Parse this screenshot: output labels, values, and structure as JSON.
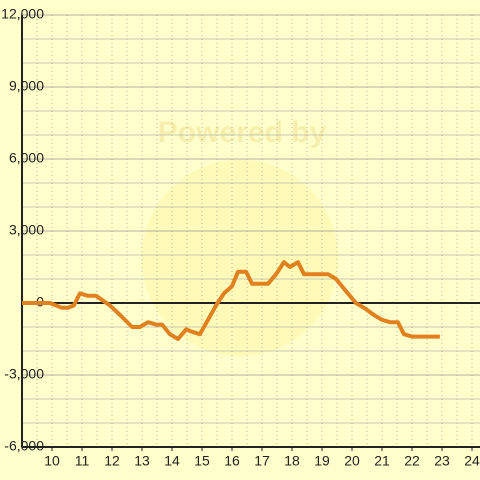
{
  "chart_data": {
    "type": "line",
    "watermark": "Powered by",
    "x": [
      9.0,
      9.93,
      10.33,
      10.53,
      10.73,
      10.93,
      11.2,
      11.47,
      11.93,
      12.27,
      12.67,
      12.93,
      13.2,
      13.47,
      13.67,
      13.93,
      14.2,
      14.47,
      14.67,
      14.93,
      15.2,
      15.47,
      15.73,
      16.0,
      16.2,
      16.47,
      16.67,
      16.93,
      17.2,
      17.47,
      17.73,
      17.93,
      18.2,
      18.4,
      18.93,
      19.2,
      19.47,
      19.73,
      19.93,
      20.13,
      20.4,
      20.73,
      21.0,
      21.27,
      21.53,
      21.73,
      22.0,
      22.93
    ],
    "series": [
      {
        "color": "#e0801f",
        "values": [
          0,
          0,
          -200,
          -200,
          -100,
          400,
          300,
          300,
          -100,
          -500,
          -1000,
          -1000,
          -800,
          -900,
          -900,
          -1300,
          -1500,
          -1100,
          -1200,
          -1300,
          -700,
          -100,
          400,
          700,
          1300,
          1300,
          800,
          800,
          800,
          1200,
          1700,
          1500,
          1700,
          1200,
          1200,
          1200,
          1000,
          600,
          300,
          0,
          -200,
          -500,
          -700,
          -800,
          -800,
          -1300,
          -1400,
          -1400
        ]
      }
    ],
    "xlim": [
      9,
      24.3
    ],
    "xticks": [
      10,
      11,
      12,
      13,
      14,
      15,
      16,
      17,
      18,
      19,
      20,
      21,
      22,
      23,
      24
    ],
    "xminorticks": [
      9.5,
      10,
      10.5,
      11,
      11.5,
      12,
      12.5,
      13,
      13.5,
      14,
      14.5,
      15,
      15.5,
      16,
      16.5,
      17,
      17.5,
      18,
      18.5,
      19,
      19.5,
      20,
      20.5,
      21,
      21.5,
      22,
      22.5,
      23,
      23.5,
      24
    ],
    "ylim": [
      -6000,
      12000
    ],
    "yticks": [
      {
        "value": -6000,
        "label": "-6,000"
      },
      {
        "value": -3000,
        "label": "-3,000"
      },
      0,
      {
        "value": 3000,
        "label": "3,000"
      },
      {
        "value": 6000,
        "label": "6,000"
      },
      {
        "value": 9000,
        "label": "9,000"
      },
      {
        "value": 12000,
        "label": "12,000"
      }
    ],
    "yminorticks": [
      -5000,
      -4000,
      -2000,
      -1000,
      1000,
      2000,
      4000,
      5000,
      7000,
      8000,
      10000,
      11000
    ],
    "grid": true
  }
}
